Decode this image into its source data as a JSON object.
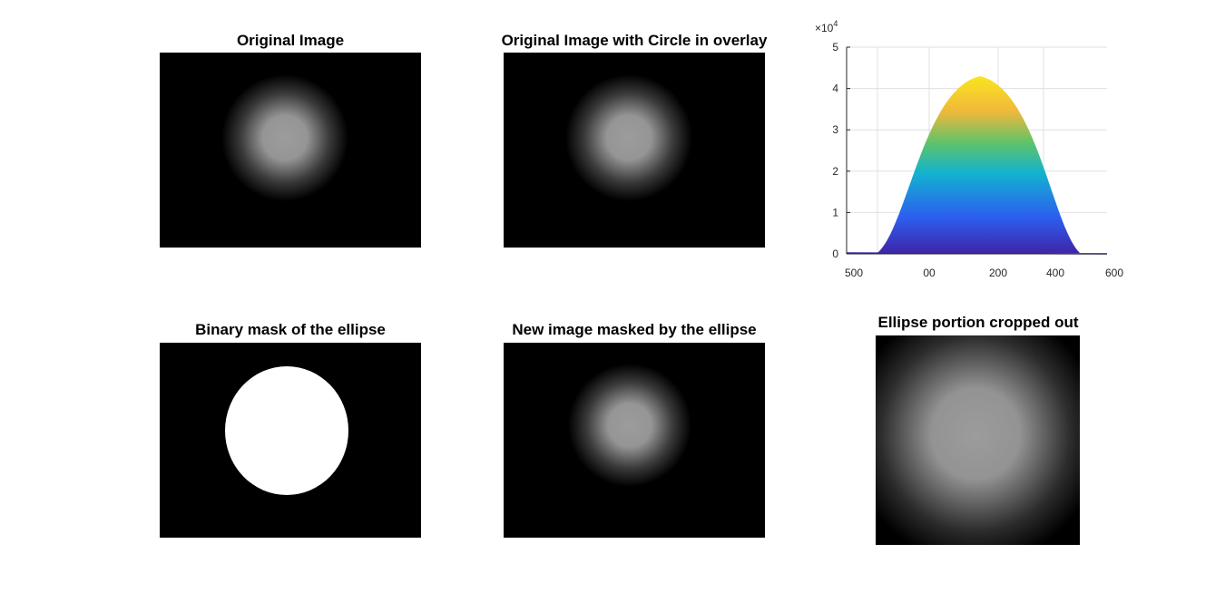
{
  "panels": [
    {
      "title": "Original Image"
    },
    {
      "title": "Original Image with Circle in overlay"
    },
    {
      "title": "Binary mask of the ellipse"
    },
    {
      "title": "New image masked by the ellipse"
    },
    {
      "title": "Ellipse portion cropped out"
    }
  ],
  "surface_plot": {
    "yticks": [
      0,
      1,
      2,
      3,
      4,
      5
    ],
    "ylim": [
      0,
      5
    ],
    "y_multiplier": {
      "base": "×10",
      "power": "4"
    },
    "xtick_labels": [
      "500",
      "00",
      "200",
      "400",
      "600"
    ]
  }
}
